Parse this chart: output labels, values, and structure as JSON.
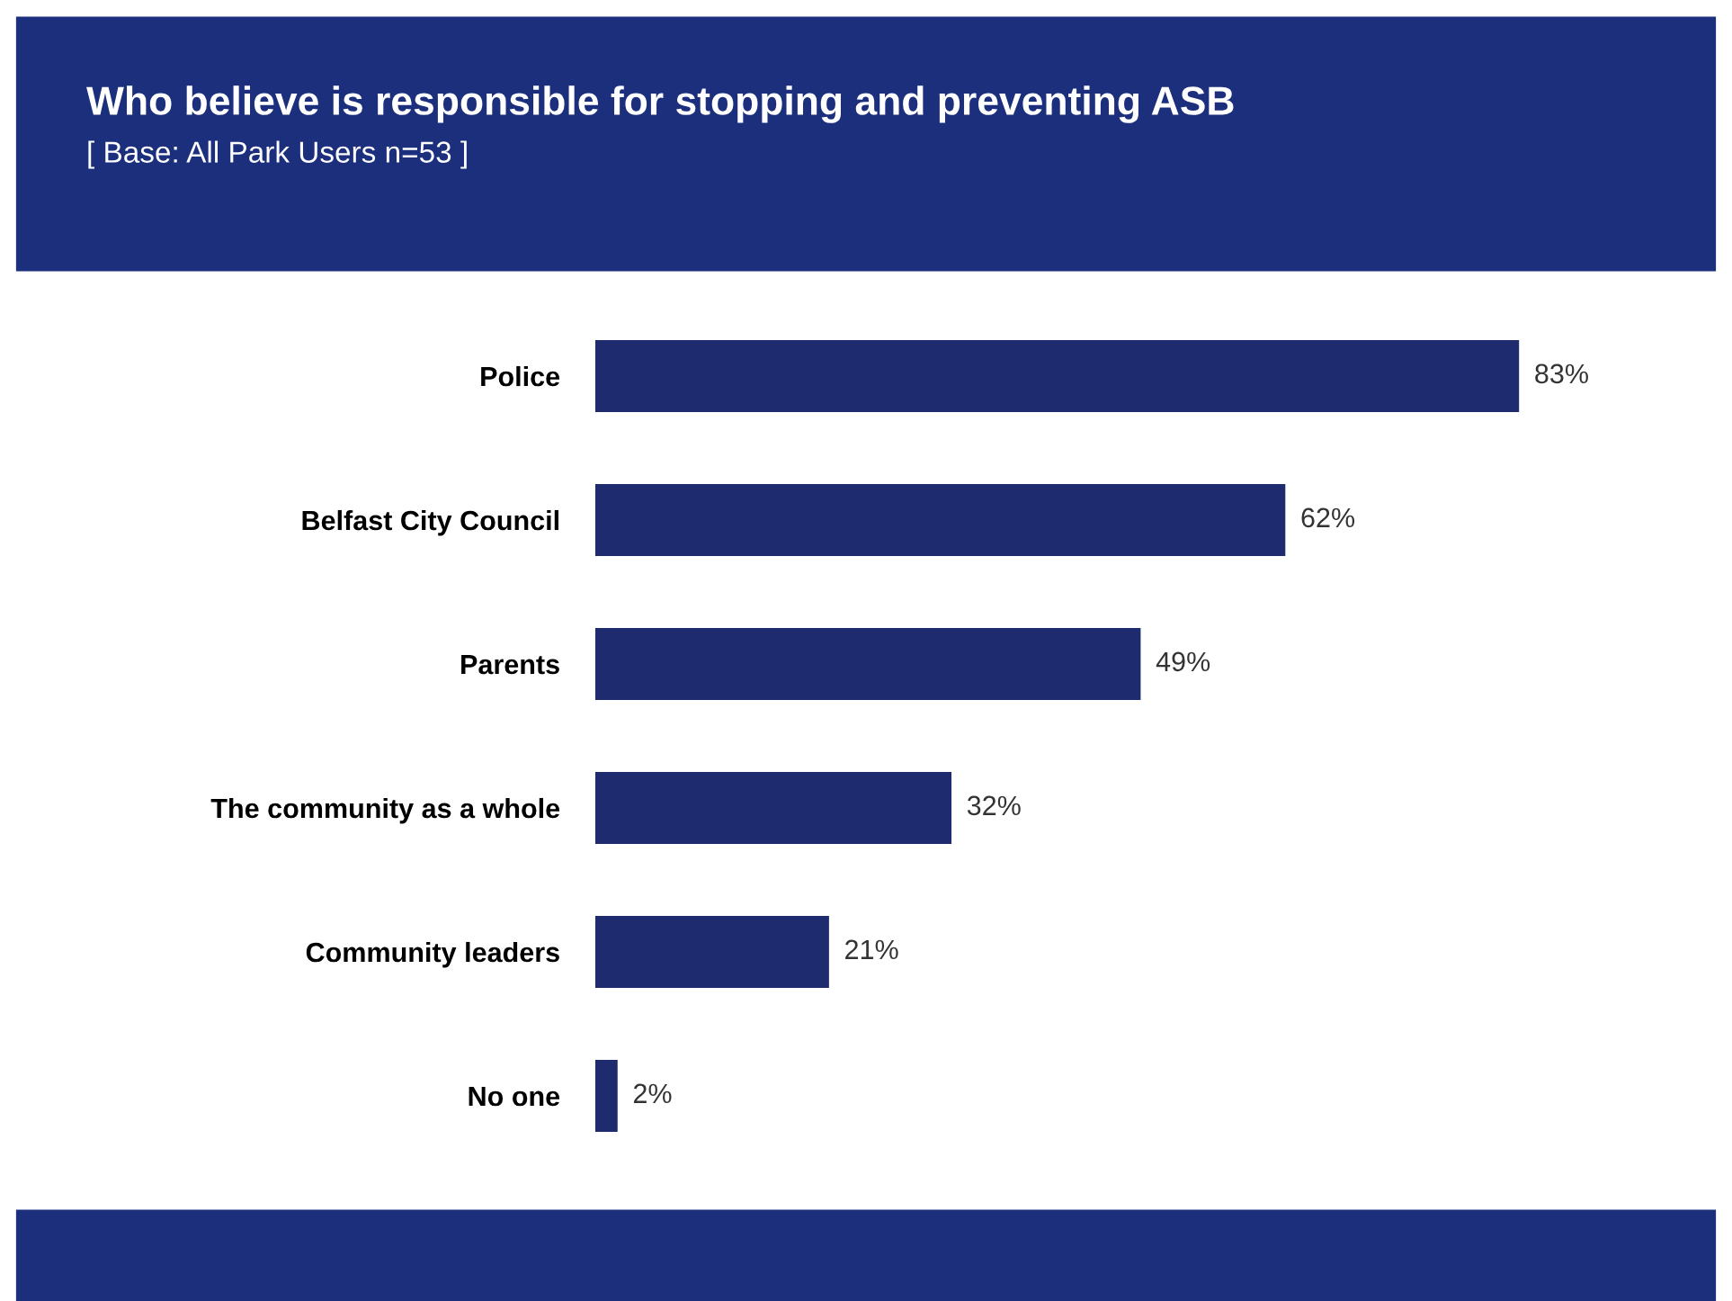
{
  "chart_data": {
    "type": "bar",
    "orientation": "horizontal",
    "title": "Who believe is responsible for stopping and preventing ASB",
    "subtitle": "[ Base: All Park Users n=53 ]",
    "categories": [
      "Police",
      "Belfast City Council",
      "Parents",
      "The community as a whole",
      "Community leaders",
      "No one"
    ],
    "values": [
      83,
      62,
      49,
      32,
      21,
      2
    ],
    "value_labels": [
      "83%",
      "62%",
      "49%",
      "32%",
      "21%",
      "2%"
    ],
    "color": "#1f2b6f",
    "grid": false,
    "legend": false
  }
}
